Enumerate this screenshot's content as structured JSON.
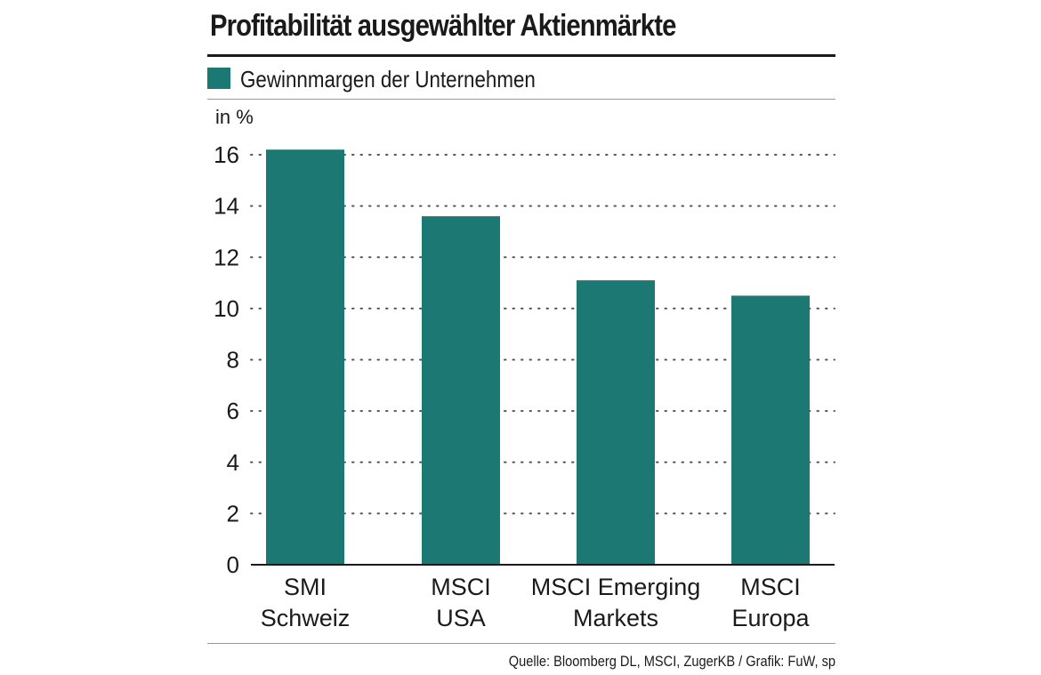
{
  "title": "Profitabilität ausgewählter Aktienmärkte",
  "source": "Quelle: Bloomberg DL, MSCI, ZugerKB / Grafik: FuW, sp",
  "colors": {
    "bar": "#1b7872",
    "grid": "#555555",
    "axis": "#1a1a1a"
  },
  "chart_data": {
    "type": "bar",
    "ylabel": "in %",
    "ylim": [
      0,
      16
    ],
    "yticks": [
      0,
      2,
      4,
      6,
      8,
      10,
      12,
      14,
      16
    ],
    "grid": "horizontal dotted",
    "legend": "top-left",
    "categories": [
      [
        "SMI",
        "Schweiz"
      ],
      [
        "MSCI",
        "USA"
      ],
      [
        "MSCI Emerging",
        "Markets"
      ],
      [
        "MSCI",
        "Europa"
      ]
    ],
    "series": [
      {
        "name": "Gewinnmargen der Unternehmen",
        "values": [
          16.2,
          13.6,
          11.1,
          10.5
        ]
      }
    ]
  }
}
